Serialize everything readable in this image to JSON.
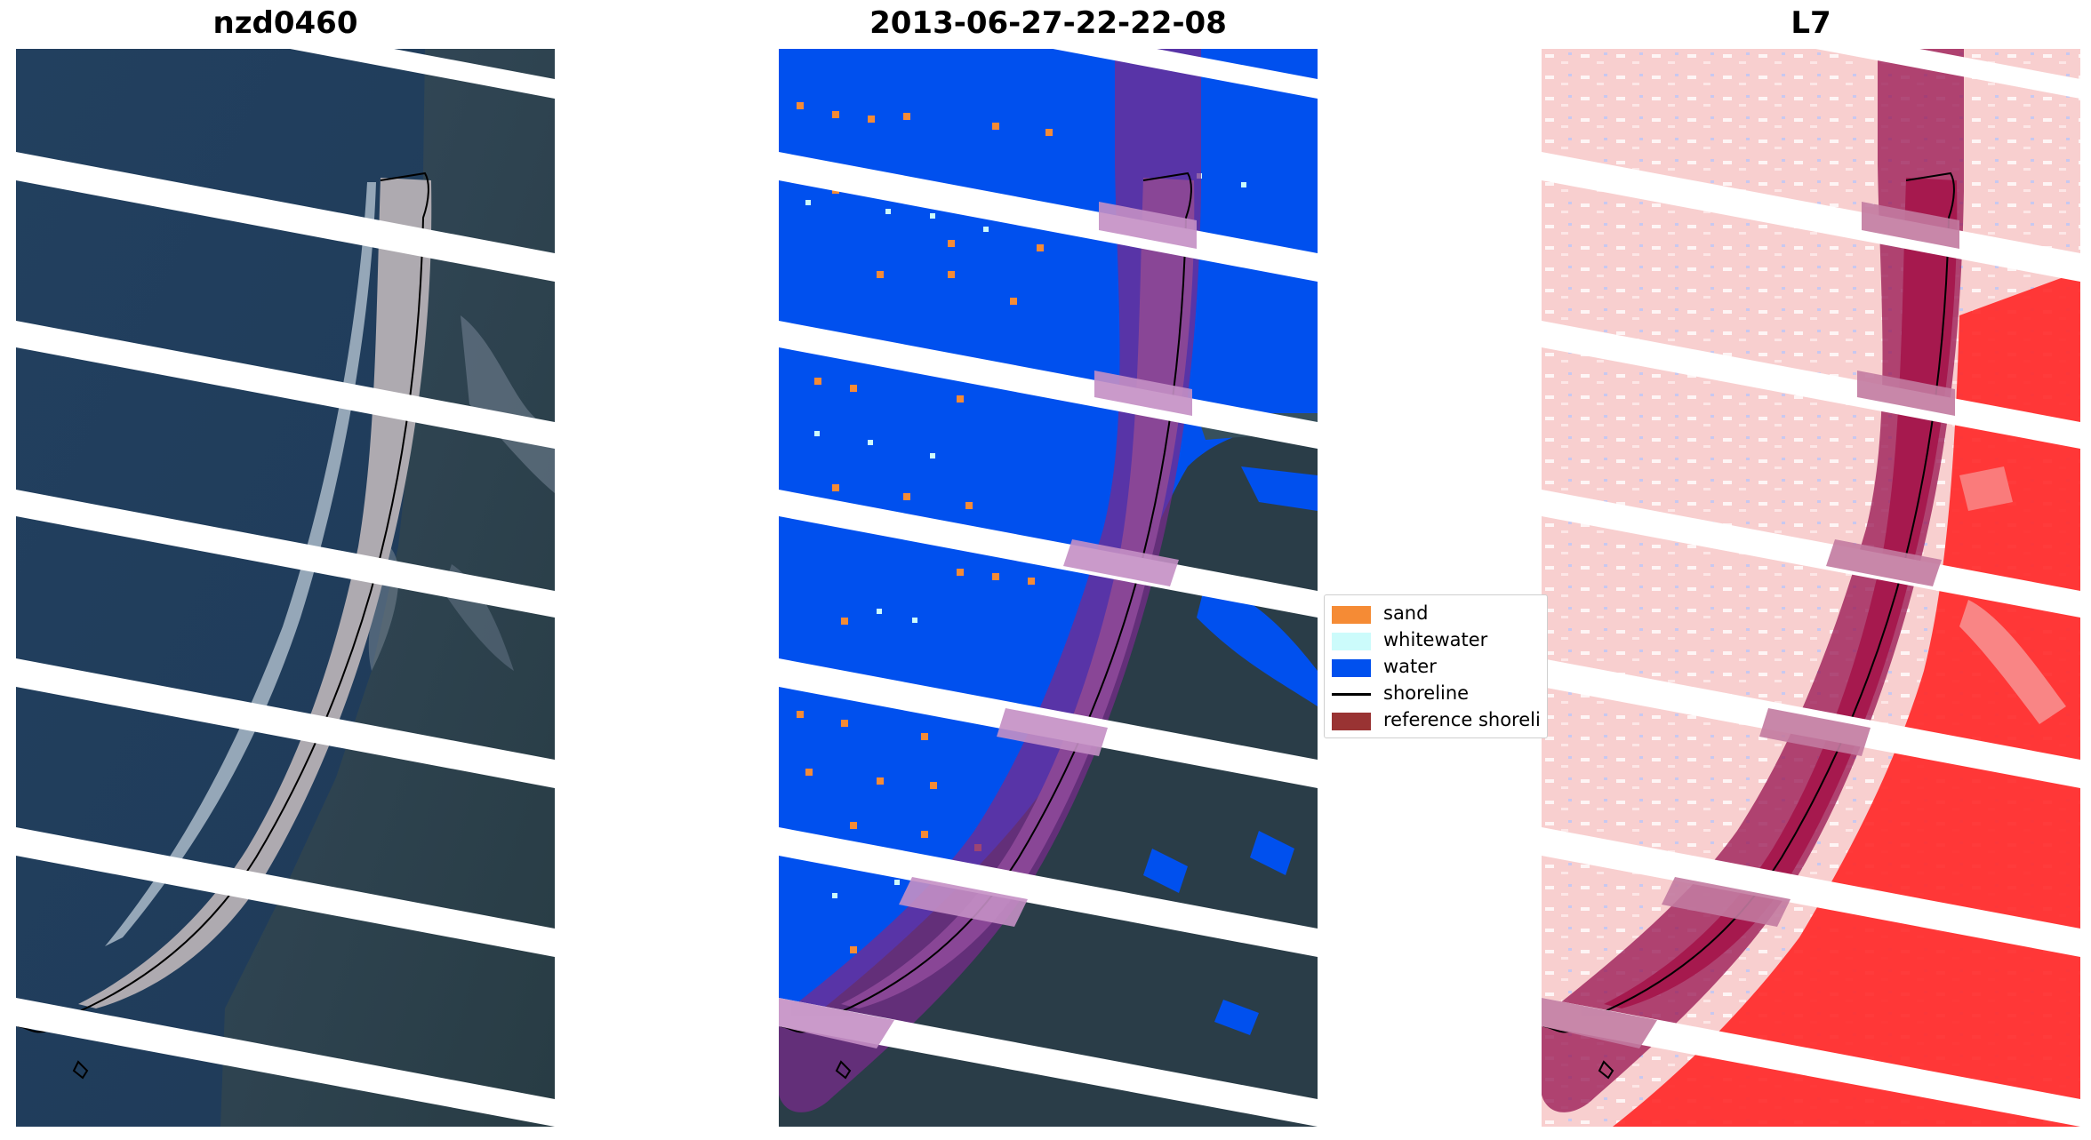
{
  "panels": {
    "left": {
      "title": "nzd0460"
    },
    "middle": {
      "title": "2013-06-27-22-22-08"
    },
    "right": {
      "title": "L7"
    }
  },
  "legend": {
    "items": [
      {
        "label": "sand",
        "color": "#f58b35"
      },
      {
        "label": "whitewater",
        "color": "#ccfbfb"
      },
      {
        "label": "water",
        "color": "#0050ee"
      },
      {
        "label": "shoreline",
        "color": "#000000"
      },
      {
        "label": "reference shoreli",
        "color": "#993333"
      }
    ]
  },
  "colors": {
    "sea": "#223e63",
    "land": "#2a3f3c",
    "sand_beach": "#a7a6a8",
    "reference_buffer": "#8b2a7a",
    "index_light": "#f7c9c9",
    "index_strong": "#ff2020"
  }
}
